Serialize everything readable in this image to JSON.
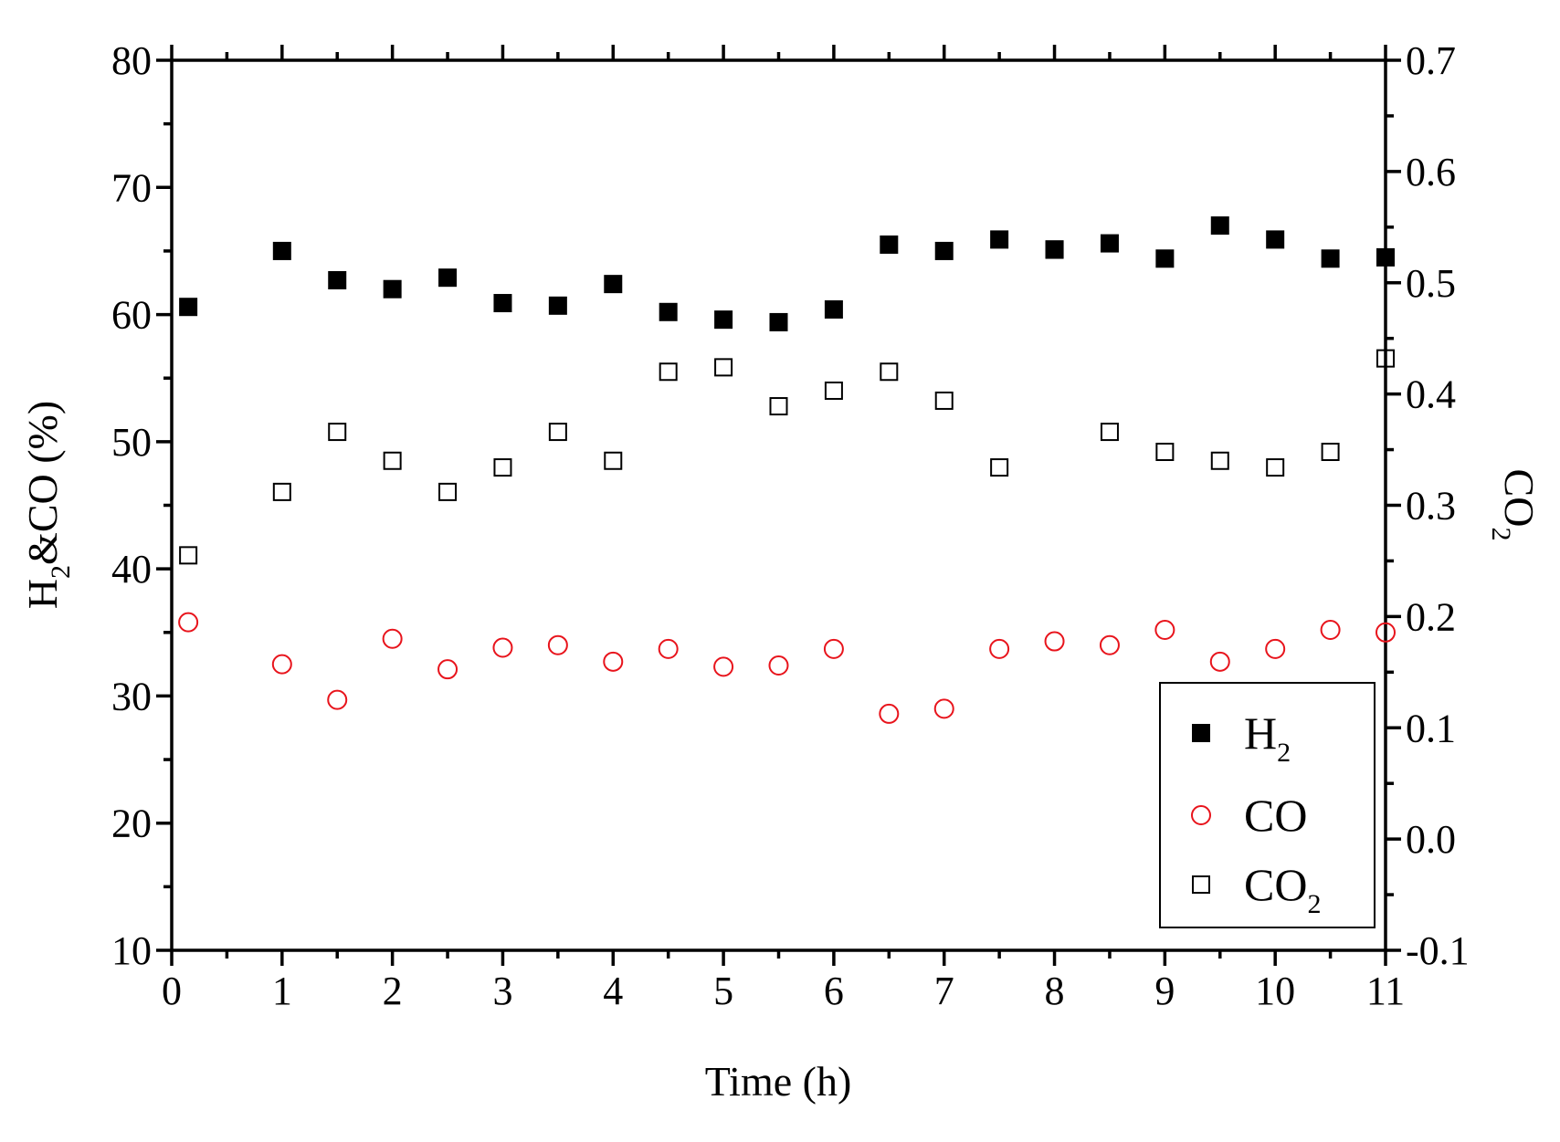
{
  "chart_data": {
    "type": "scatter",
    "xlabel": "Time (h)",
    "ylabel": {
      "main": "H",
      "sub": "2",
      "rest": "&CO (%)"
    },
    "y2label": {
      "main": "CO",
      "sub": "2"
    },
    "xlim": [
      0,
      11
    ],
    "ylim": [
      10,
      80
    ],
    "y2lim": [
      -0.1,
      0.7
    ],
    "x_ticks": [
      0,
      1,
      2,
      3,
      4,
      5,
      6,
      7,
      8,
      9,
      10,
      11
    ],
    "x_tick_labels": [
      "0",
      "1",
      "2",
      "3",
      "4",
      "5",
      "6",
      "7",
      "8",
      "9",
      "10",
      "11"
    ],
    "y_ticks": [
      10,
      20,
      30,
      40,
      50,
      60,
      70,
      80
    ],
    "y_tick_labels": [
      "10",
      "20",
      "30",
      "40",
      "50",
      "60",
      "70",
      "80"
    ],
    "y2_ticks": [
      -0.1,
      0.0,
      0.1,
      0.2,
      0.3,
      0.4,
      0.5,
      0.6,
      0.7
    ],
    "y2_tick_labels": [
      "-0.1",
      "0.0",
      "0.1",
      "0.2",
      "0.3",
      "0.4",
      "0.5",
      "0.6",
      "0.7"
    ],
    "grid": false,
    "legend_position": "bottom-right",
    "series": [
      {
        "name": "H2",
        "label_main": "H",
        "label_sub": "2",
        "axis": "left",
        "marker": "filled-square",
        "color": "#000000",
        "x": [
          0.15,
          1,
          1.5,
          2,
          2.5,
          3,
          3.5,
          4,
          4.5,
          5,
          5.5,
          6,
          6.5,
          7,
          7.5,
          8,
          8.5,
          9,
          9.5,
          10,
          10.5,
          11
        ],
        "y": [
          60.6,
          65.0,
          62.7,
          62.0,
          62.9,
          60.9,
          60.7,
          62.4,
          60.2,
          59.6,
          59.4,
          60.4,
          65.5,
          65.0,
          65.9,
          65.1,
          65.6,
          64.4,
          67.0,
          65.9,
          64.4,
          64.5
        ]
      },
      {
        "name": "CO",
        "label_main": "CO",
        "label_sub": "",
        "axis": "left",
        "marker": "open-circle",
        "color": "#e8141c",
        "x": [
          0.15,
          1,
          1.5,
          2,
          2.5,
          3,
          3.5,
          4,
          4.5,
          5,
          5.5,
          6,
          6.5,
          7,
          7.5,
          8,
          8.5,
          9,
          9.5,
          10,
          10.5,
          11
        ],
        "y": [
          35.8,
          32.5,
          29.7,
          34.5,
          32.1,
          33.8,
          34.0,
          32.7,
          33.7,
          32.3,
          32.4,
          33.7,
          28.6,
          29.0,
          33.7,
          34.3,
          34.0,
          35.2,
          32.7,
          33.7,
          35.2,
          35.0
        ]
      },
      {
        "name": "CO2",
        "label_main": "CO",
        "label_sub": "2",
        "axis": "right",
        "marker": "open-square",
        "color": "#000000",
        "x": [
          0.15,
          1,
          1.5,
          2,
          2.5,
          3,
          3.5,
          4,
          4.5,
          5,
          5.5,
          6,
          6.5,
          7,
          7.5,
          8,
          8.5,
          9,
          9.5,
          10,
          10.5,
          11
        ],
        "y": [
          0.255,
          0.312,
          0.366,
          0.34,
          0.312,
          0.334,
          0.366,
          0.34,
          0.42,
          0.424,
          0.389,
          0.403,
          0.42,
          0.394,
          0.334,
          0.53,
          0.366,
          0.348,
          0.34,
          0.334,
          0.348,
          0.432
        ]
      }
    ]
  }
}
